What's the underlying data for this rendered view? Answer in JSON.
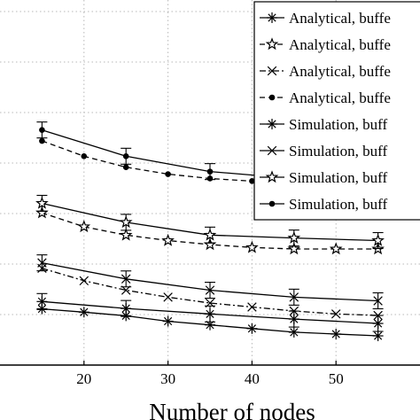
{
  "chart_data": {
    "type": "line",
    "xlabel": "Number of nodes",
    "ylabel": "",
    "xlim": [
      10,
      60
    ],
    "ylim": [
      0,
      1
    ],
    "xticks": [
      20,
      30,
      40,
      50
    ],
    "grid": true,
    "legend_position": "top-right",
    "series": [
      {
        "name": "Analytical, buffe",
        "marker": "asterisk",
        "dash": "solid",
        "x": [
          15,
          20,
          25,
          30,
          35,
          40,
          45,
          50,
          55
        ],
        "y": [
          0.154,
          0.145,
          0.135,
          0.12,
          0.11,
          0.1,
          0.09,
          0.085,
          0.08
        ]
      },
      {
        "name": "Analytical, buffe",
        "marker": "star",
        "dash": "dashed",
        "x": [
          15,
          20,
          25,
          30,
          35,
          40,
          45,
          50,
          55
        ],
        "y": [
          0.417,
          0.379,
          0.356,
          0.341,
          0.33,
          0.322,
          0.318,
          0.318,
          0.318
        ]
      },
      {
        "name": "Analytical, buffe",
        "marker": "x",
        "dash": "dashdot",
        "x": [
          15,
          20,
          25,
          30,
          35,
          40,
          45,
          50,
          55
        ],
        "y": [
          0.265,
          0.231,
          0.205,
          0.186,
          0.17,
          0.159,
          0.148,
          0.14,
          0.136
        ]
      },
      {
        "name": "Analytical, buffe",
        "marker": "dot",
        "dash": "dashed",
        "x": [
          15,
          20,
          25,
          30,
          35,
          40,
          45,
          50,
          55
        ],
        "y": [
          0.614,
          0.572,
          0.542,
          0.523,
          0.511,
          0.504,
          0.5,
          0.496,
          0.494
        ]
      },
      {
        "name": "Simulation, buff",
        "marker": "asterisk",
        "dash": "solid",
        "x": [
          15,
          25,
          35,
          45,
          55
        ],
        "y": [
          0.174,
          0.155,
          0.14,
          0.126,
          0.114
        ]
      },
      {
        "name": "Simulation, buff",
        "marker": "x",
        "dash": "solid",
        "x": [
          15,
          25,
          35,
          45,
          55
        ],
        "y": [
          0.28,
          0.236,
          0.205,
          0.186,
          0.176
        ]
      },
      {
        "name": "Simulation, buff",
        "marker": "star",
        "dash": "solid",
        "x": [
          15,
          25,
          35,
          45,
          55
        ],
        "y": [
          0.443,
          0.391,
          0.356,
          0.348,
          0.341
        ]
      },
      {
        "name": "Simulation, buff",
        "marker": "dot",
        "dash": "solid",
        "x": [
          15,
          25,
          35,
          45,
          55
        ],
        "y": [
          0.644,
          0.572,
          0.53,
          0.511,
          0.504
        ]
      }
    ]
  }
}
